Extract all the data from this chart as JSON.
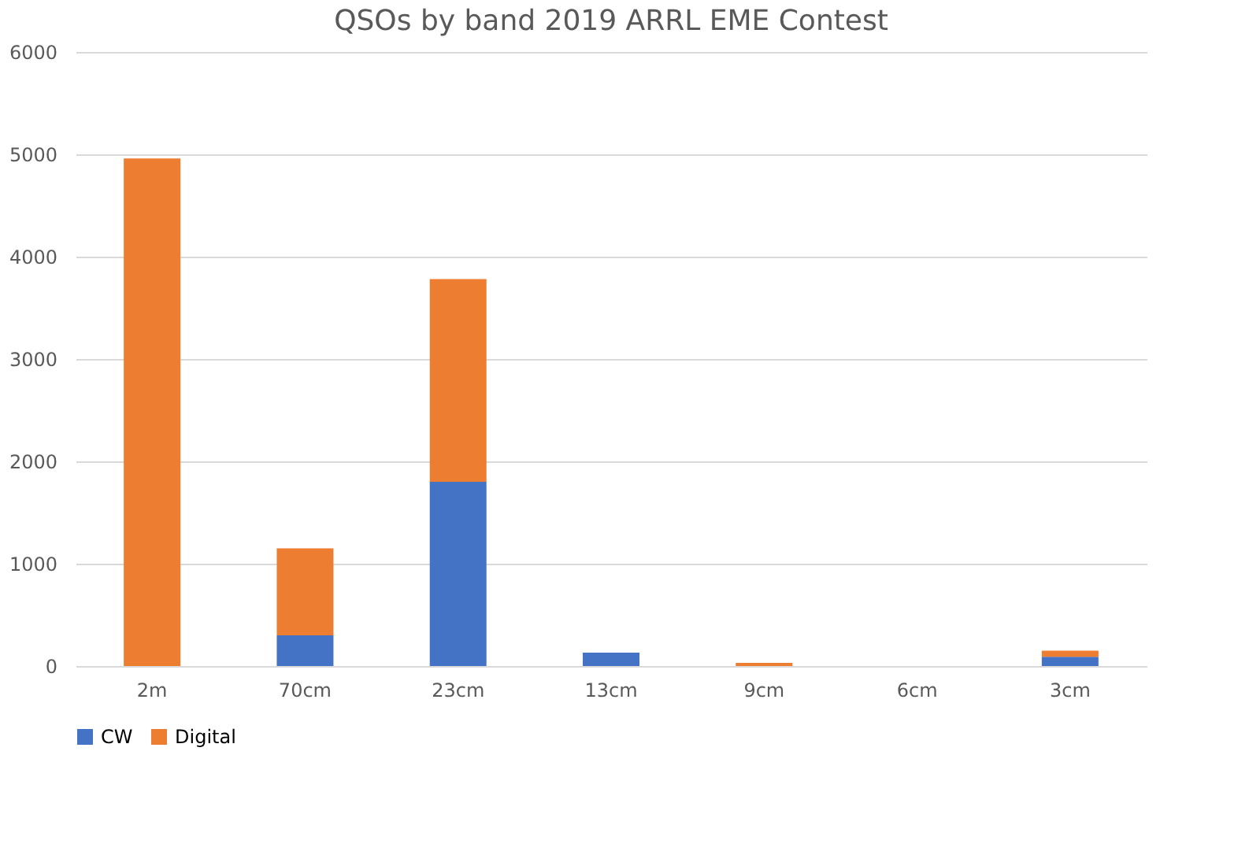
{
  "chart_data": {
    "type": "bar",
    "title": "QSOs by band 2019 ARRL EME Contest",
    "categories": [
      "2m",
      "70cm",
      "23cm",
      "13cm",
      "9cm",
      "6cm",
      "3cm"
    ],
    "stacked": true,
    "series": [
      {
        "name": "CW",
        "color": "#4472c4",
        "values": [
          0,
          300,
          1800,
          130,
          0,
          0,
          90
        ]
      },
      {
        "name": "Digital",
        "color": "#ed7d31",
        "values": [
          4960,
          850,
          1980,
          0,
          30,
          0,
          60
        ]
      }
    ],
    "ylim": [
      0,
      6000
    ],
    "yticks": [
      0,
      1000,
      2000,
      3000,
      4000,
      5000,
      6000
    ],
    "grid": "y",
    "legend": "bottom"
  }
}
